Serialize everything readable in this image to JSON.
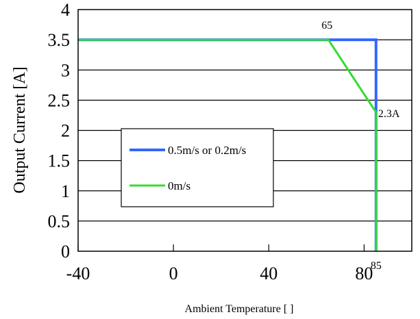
{
  "chart_data": {
    "type": "line",
    "xlabel": "Ambient Temperature [ ]",
    "ylabel": "Output Current [A]",
    "xlim": [
      -40,
      100
    ],
    "ylim": [
      0,
      4
    ],
    "x_ticks": [
      "-40",
      "0",
      "40",
      "80"
    ],
    "y_ticks": [
      "0",
      "0.5",
      "1",
      "1.5",
      "2",
      "2.5",
      "3",
      "3.5",
      "4"
    ],
    "grid": "horizontal",
    "legend_position": "center-left",
    "series": [
      {
        "name": "0.5m/s or 0.2m/s",
        "color": "#3366ff",
        "x": [
          -40,
          85,
          85
        ],
        "y": [
          3.5,
          3.5,
          0
        ]
      },
      {
        "name": "0m/s",
        "color": "#33dd33",
        "x": [
          -40,
          65,
          85,
          85
        ],
        "y": [
          3.5,
          3.5,
          2.3,
          0
        ]
      }
    ],
    "annotations": [
      {
        "text": "65",
        "x": 65,
        "y": 3.5
      },
      {
        "text": "2.3A",
        "x": 85,
        "y": 2.3
      },
      {
        "text": "85",
        "x": 85,
        "y": 0
      }
    ]
  }
}
